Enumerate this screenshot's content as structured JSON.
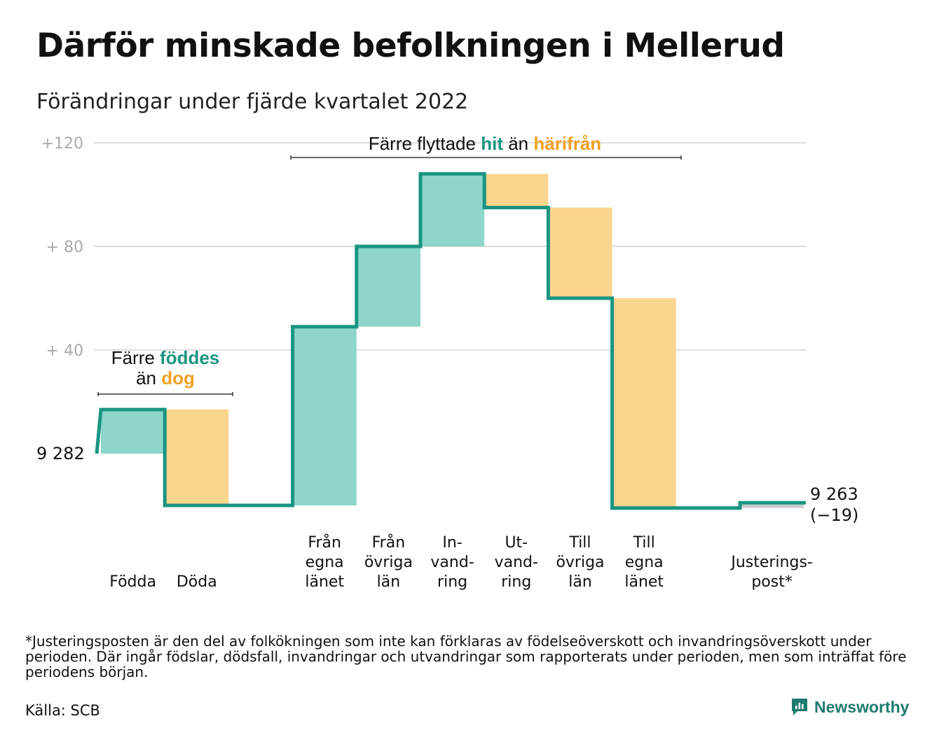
{
  "title": "Därför minskade befolkningen i Mellerud",
  "subtitle": "Förändringar under fjärde kvartalet 2022",
  "footnote": "*Justeringsposten är den del av folkökningen som inte kan förklaras av födelseöverskott och invandringsöverskott under perioden. Där ingår födslar, dödsfall, invandringar och utvandringar som rapporterats under perioden, men som inträffat före periodens början.",
  "source": "Källa: SCB",
  "brand": "Newsworthy",
  "colors": {
    "increase_fill": "#8ed5cc",
    "decrease_fill": "#fad58e",
    "adjust_fill": "#cccccc",
    "line": "#1a9582",
    "teal_text": "#1a9582",
    "orange_text": "#f0a024",
    "grid": "#dddddd",
    "tick_text": "#aaaaaa"
  },
  "chart_data": {
    "type": "waterfall",
    "start_label": "9 282",
    "end_label": [
      "9 263",
      "(−19)"
    ],
    "y_ticks": [
      "+120",
      "+ 80",
      "+ 40"
    ],
    "bars": [
      {
        "label": [
          "Födda"
        ],
        "value": 17,
        "kind": "increase"
      },
      {
        "label": [
          "Döda"
        ],
        "value": -37,
        "kind": "decrease"
      },
      {
        "label": [],
        "value": 0,
        "kind": "gap"
      },
      {
        "label": [
          "Från",
          "egna",
          "länet"
        ],
        "value": 69,
        "kind": "increase"
      },
      {
        "label": [
          "Från",
          "övriga",
          "län"
        ],
        "value": 31,
        "kind": "increase"
      },
      {
        "label": [
          "In-",
          "vand-",
          "ring"
        ],
        "value": 28,
        "kind": "increase"
      },
      {
        "label": [
          "Ut-",
          "vand-",
          "ring"
        ],
        "value": -13,
        "kind": "decrease"
      },
      {
        "label": [
          "Till",
          "övriga",
          "län"
        ],
        "value": -35,
        "kind": "decrease"
      },
      {
        "label": [
          "Till",
          "egna",
          "länet"
        ],
        "value": -81,
        "kind": "decrease"
      },
      {
        "label": [],
        "value": 0,
        "kind": "gap"
      },
      {
        "label": [
          "Justerings-",
          "post*"
        ],
        "value": 2,
        "kind": "adjust"
      }
    ],
    "annotations": [
      {
        "id": "births",
        "lines": [
          [
            {
              "t": "Färre ",
              "c": "dark"
            },
            {
              "t": "föddes",
              "c": "teal"
            }
          ],
          [
            {
              "t": "än ",
              "c": "dark"
            },
            {
              "t": "dog",
              "c": "orange"
            }
          ]
        ]
      },
      {
        "id": "moves",
        "lines": [
          [
            {
              "t": "Färre flyttade ",
              "c": "dark"
            },
            {
              "t": "hit",
              "c": "teal"
            },
            {
              "t": " än ",
              "c": "dark"
            },
            {
              "t": "härifrån",
              "c": "orange"
            }
          ]
        ]
      }
    ]
  }
}
